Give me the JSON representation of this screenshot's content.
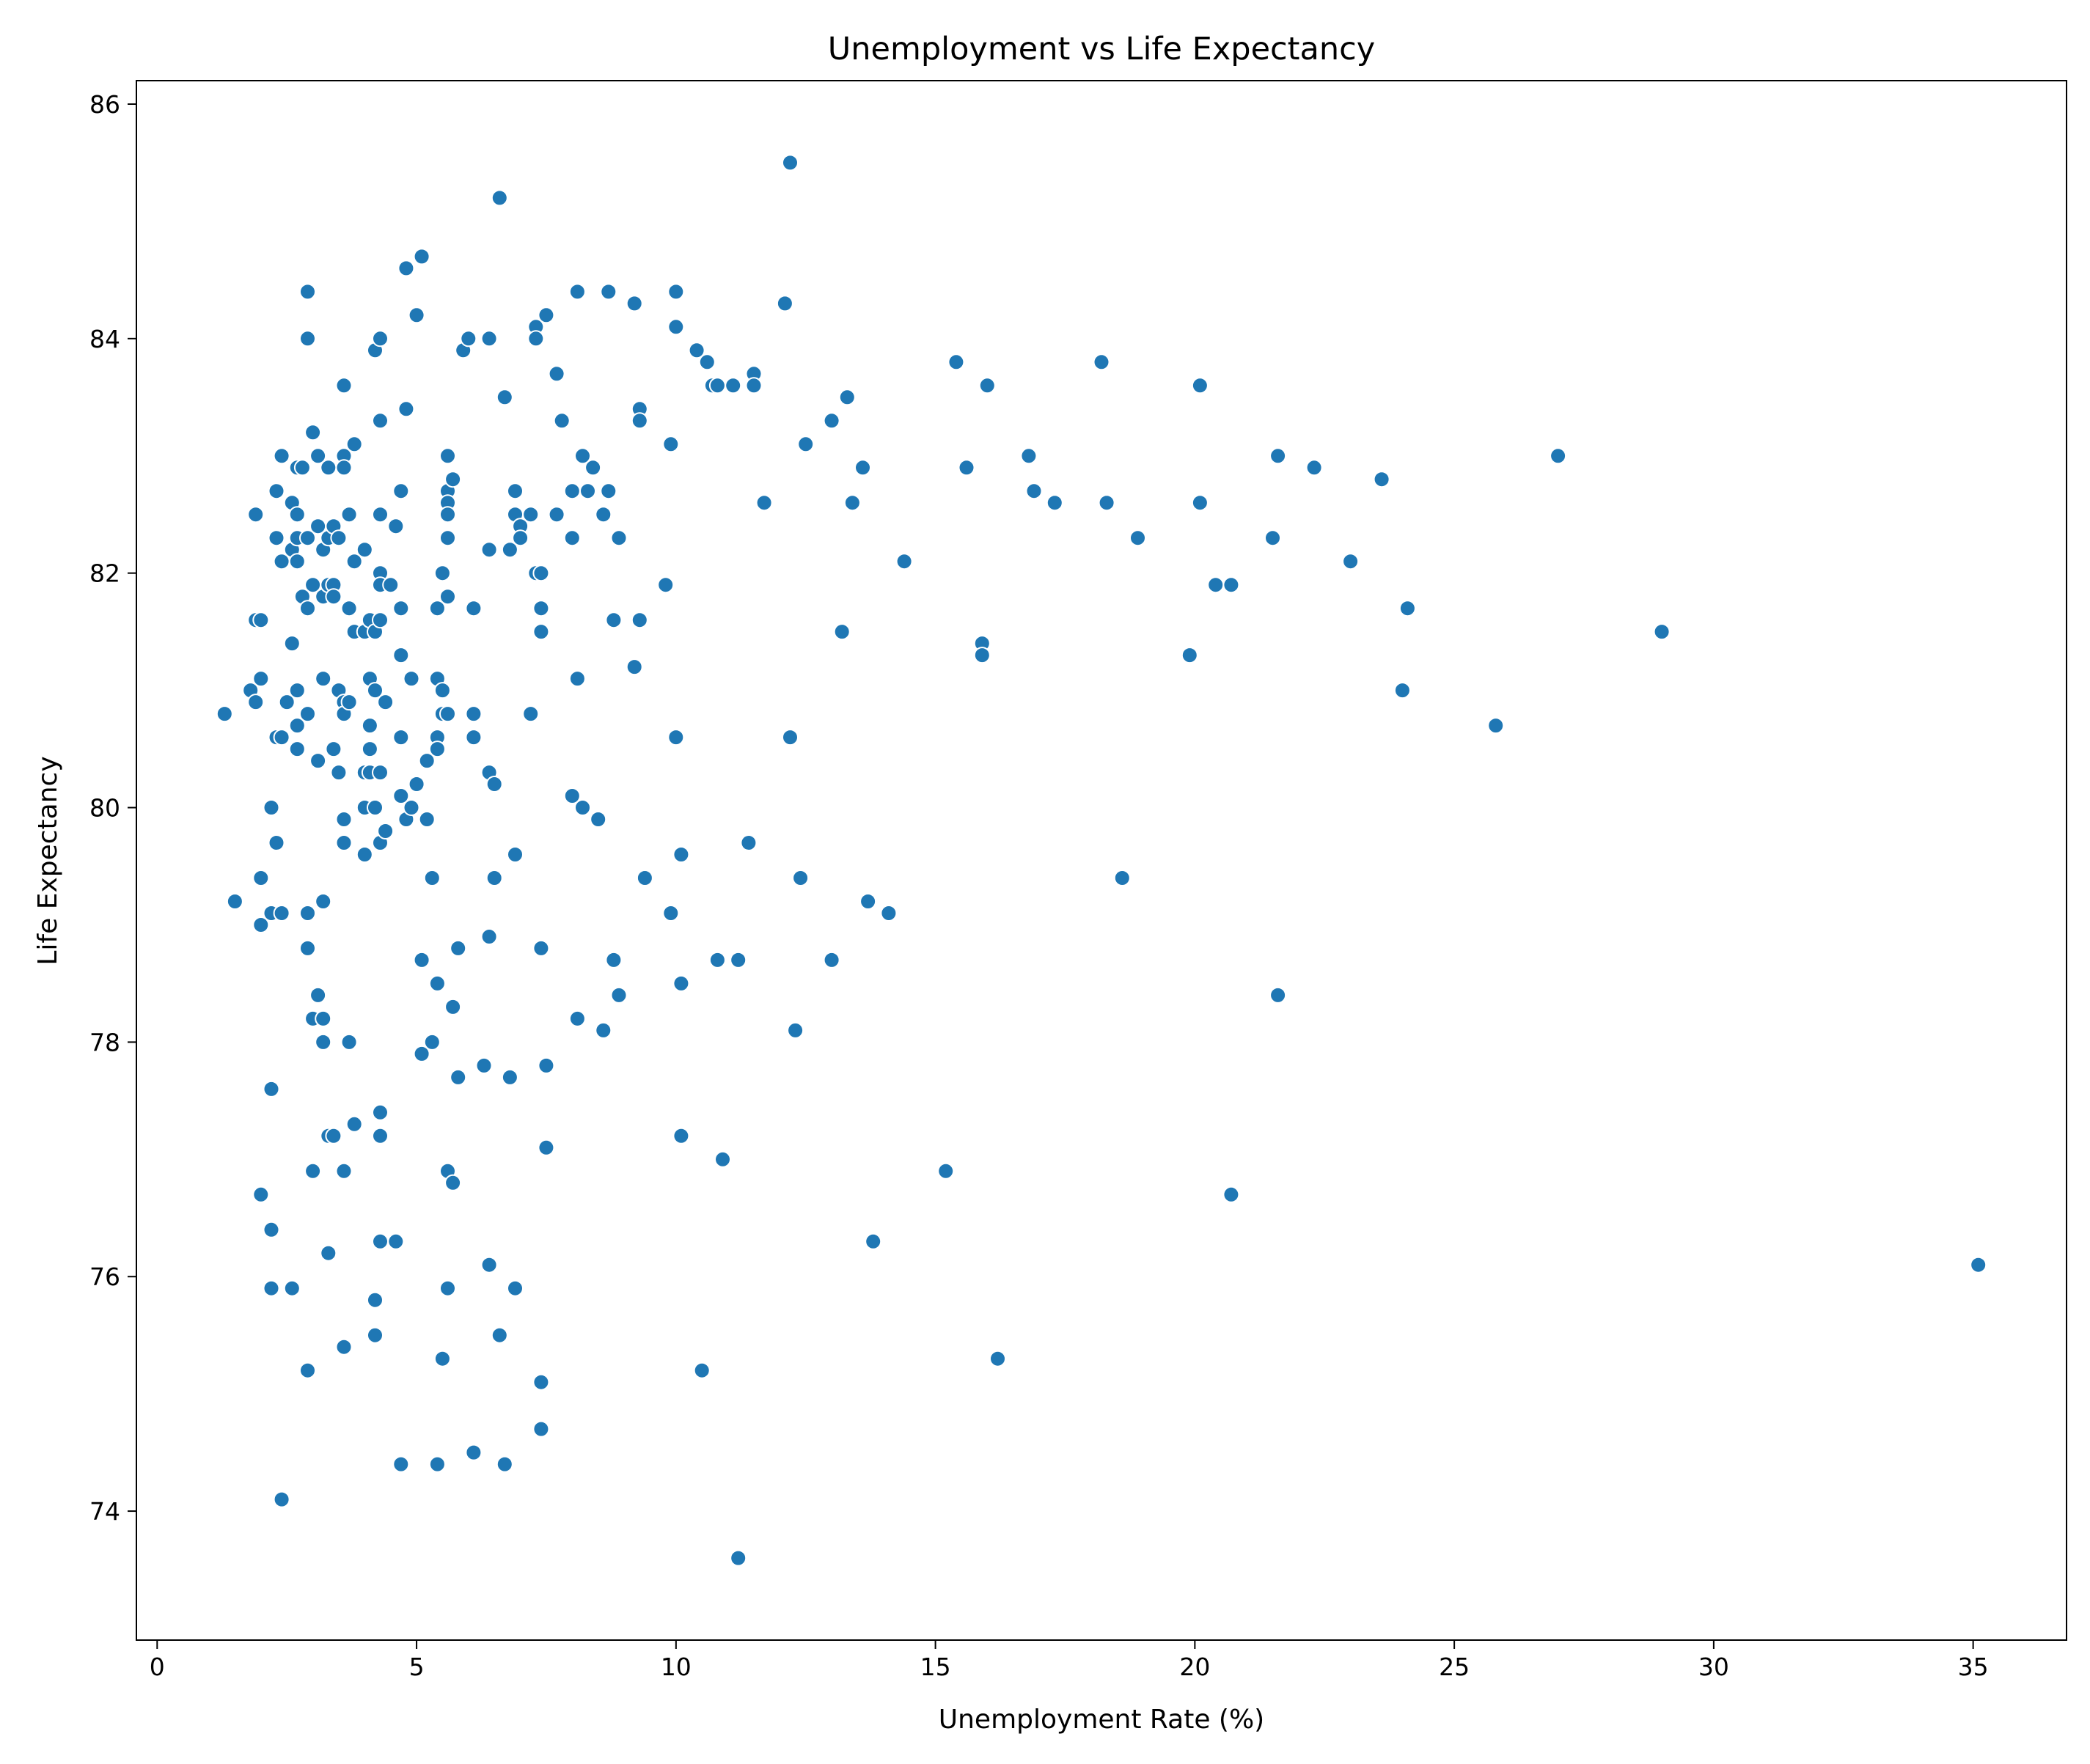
{
  "chart_data": {
    "type": "scatter",
    "title": "Unemployment vs Life Expectancy",
    "xlabel": "Unemployment Rate (%)",
    "ylabel": "Life Expectancy",
    "xlim": [
      -0.4,
      36.8
    ],
    "ylim": [
      72.9,
      86.2
    ],
    "xticks": [
      0,
      5,
      10,
      15,
      20,
      25,
      30,
      35
    ],
    "yticks": [
      74,
      76,
      78,
      80,
      82,
      84,
      86
    ],
    "grid": false,
    "marker_color": "#1f77b4",
    "points": [
      [
        1.3,
        80.8
      ],
      [
        1.5,
        79.2
      ],
      [
        1.8,
        81.0
      ],
      [
        1.9,
        80.9
      ],
      [
        1.9,
        81.6
      ],
      [
        2.0,
        81.6
      ],
      [
        1.9,
        82.5
      ],
      [
        2.0,
        81.1
      ],
      [
        2.0,
        79.4
      ],
      [
        2.0,
        79.0
      ],
      [
        2.0,
        76.7
      ],
      [
        2.2,
        80.0
      ],
      [
        2.2,
        79.1
      ],
      [
        2.2,
        77.6
      ],
      [
        2.2,
        76.4
      ],
      [
        2.2,
        75.9
      ],
      [
        2.3,
        79.7
      ],
      [
        2.3,
        80.6
      ],
      [
        2.3,
        82.3
      ],
      [
        2.3,
        82.7
      ],
      [
        2.4,
        83.0
      ],
      [
        2.4,
        82.1
      ],
      [
        2.4,
        80.6
      ],
      [
        2.4,
        79.1
      ],
      [
        2.4,
        74.1
      ],
      [
        2.5,
        80.9
      ],
      [
        2.6,
        82.6
      ],
      [
        2.6,
        82.2
      ],
      [
        2.6,
        81.4
      ],
      [
        2.6,
        75.9
      ],
      [
        2.7,
        82.9
      ],
      [
        2.7,
        82.5
      ],
      [
        2.7,
        82.3
      ],
      [
        2.7,
        82.1
      ],
      [
        2.7,
        81.0
      ],
      [
        2.7,
        80.7
      ],
      [
        2.7,
        80.5
      ],
      [
        2.8,
        81.8
      ],
      [
        2.8,
        82.9
      ],
      [
        2.9,
        84.4
      ],
      [
        2.9,
        84.0
      ],
      [
        2.9,
        82.3
      ],
      [
        2.9,
        81.7
      ],
      [
        2.9,
        80.8
      ],
      [
        2.9,
        79.1
      ],
      [
        2.9,
        78.8
      ],
      [
        2.9,
        75.2
      ],
      [
        3.0,
        83.2
      ],
      [
        3.0,
        81.9
      ],
      [
        3.0,
        78.2
      ],
      [
        3.0,
        76.9
      ],
      [
        3.1,
        83.0
      ],
      [
        3.1,
        82.4
      ],
      [
        3.1,
        80.4
      ],
      [
        3.1,
        78.4
      ],
      [
        3.2,
        82.2
      ],
      [
        3.2,
        81.8
      ],
      [
        3.2,
        81.1
      ],
      [
        3.2,
        79.2
      ],
      [
        3.2,
        78.2
      ],
      [
        3.2,
        78.0
      ],
      [
        3.3,
        82.9
      ],
      [
        3.3,
        82.3
      ],
      [
        3.3,
        81.9
      ],
      [
        3.3,
        77.2
      ],
      [
        3.3,
        76.2
      ],
      [
        3.4,
        82.4
      ],
      [
        3.4,
        81.9
      ],
      [
        3.4,
        81.8
      ],
      [
        3.4,
        80.5
      ],
      [
        3.4,
        77.2
      ],
      [
        3.5,
        82.3
      ],
      [
        3.5,
        81.0
      ],
      [
        3.5,
        80.3
      ],
      [
        3.6,
        83.6
      ],
      [
        3.6,
        83.0
      ],
      [
        3.6,
        82.9
      ],
      [
        3.6,
        80.9
      ],
      [
        3.6,
        80.8
      ],
      [
        3.6,
        79.9
      ],
      [
        3.6,
        79.7
      ],
      [
        3.6,
        76.9
      ],
      [
        3.6,
        75.4
      ],
      [
        3.7,
        82.5
      ],
      [
        3.7,
        81.7
      ],
      [
        3.7,
        80.9
      ],
      [
        3.7,
        78.0
      ],
      [
        3.8,
        83.1
      ],
      [
        3.8,
        82.1
      ],
      [
        3.8,
        81.5
      ],
      [
        3.8,
        77.3
      ],
      [
        4.0,
        82.2
      ],
      [
        4.0,
        81.5
      ],
      [
        4.0,
        80.3
      ],
      [
        4.0,
        80.0
      ],
      [
        4.0,
        79.6
      ],
      [
        4.1,
        81.6
      ],
      [
        4.1,
        81.1
      ],
      [
        4.1,
        80.7
      ],
      [
        4.1,
        80.5
      ],
      [
        4.1,
        80.3
      ],
      [
        4.2,
        83.9
      ],
      [
        4.2,
        81.5
      ],
      [
        4.2,
        81.0
      ],
      [
        4.2,
        80.0
      ],
      [
        4.2,
        75.8
      ],
      [
        4.2,
        75.5
      ],
      [
        4.3,
        84.0
      ],
      [
        4.3,
        83.3
      ],
      [
        4.3,
        82.5
      ],
      [
        4.3,
        82.0
      ],
      [
        4.3,
        81.9
      ],
      [
        4.3,
        81.6
      ],
      [
        4.3,
        80.3
      ],
      [
        4.3,
        79.7
      ],
      [
        4.3,
        77.4
      ],
      [
        4.3,
        77.2
      ],
      [
        4.3,
        76.3
      ],
      [
        4.4,
        80.9
      ],
      [
        4.4,
        79.8
      ],
      [
        4.5,
        81.9
      ],
      [
        4.6,
        82.4
      ],
      [
        4.6,
        76.3
      ],
      [
        4.7,
        82.7
      ],
      [
        4.7,
        81.7
      ],
      [
        4.7,
        81.3
      ],
      [
        4.7,
        80.6
      ],
      [
        4.7,
        80.1
      ],
      [
        4.7,
        74.4
      ],
      [
        4.8,
        84.6
      ],
      [
        4.8,
        83.4
      ],
      [
        4.8,
        79.9
      ],
      [
        4.9,
        81.1
      ],
      [
        4.9,
        80.0
      ],
      [
        5.0,
        84.2
      ],
      [
        5.0,
        80.2
      ],
      [
        5.1,
        84.7
      ],
      [
        5.1,
        78.7
      ],
      [
        5.1,
        77.9
      ],
      [
        5.2,
        80.4
      ],
      [
        5.2,
        79.9
      ],
      [
        5.3,
        79.4
      ],
      [
        5.3,
        78.0
      ],
      [
        5.4,
        81.7
      ],
      [
        5.4,
        81.1
      ],
      [
        5.4,
        80.6
      ],
      [
        5.4,
        80.5
      ],
      [
        5.4,
        78.5
      ],
      [
        5.4,
        74.4
      ],
      [
        5.5,
        82.0
      ],
      [
        5.5,
        81.0
      ],
      [
        5.5,
        80.8
      ],
      [
        5.5,
        75.3
      ],
      [
        5.6,
        83.0
      ],
      [
        5.6,
        82.7
      ],
      [
        5.6,
        82.6
      ],
      [
        5.6,
        82.5
      ],
      [
        5.6,
        82.3
      ],
      [
        5.6,
        81.8
      ],
      [
        5.6,
        80.8
      ],
      [
        5.6,
        76.9
      ],
      [
        5.6,
        75.9
      ],
      [
        5.7,
        82.8
      ],
      [
        5.7,
        78.3
      ],
      [
        5.7,
        76.8
      ],
      [
        5.8,
        78.8
      ],
      [
        5.8,
        77.7
      ],
      [
        5.9,
        83.9
      ],
      [
        6.0,
        84.0
      ],
      [
        6.1,
        81.7
      ],
      [
        6.1,
        80.8
      ],
      [
        6.1,
        80.6
      ],
      [
        6.1,
        74.5
      ],
      [
        6.3,
        77.8
      ],
      [
        6.4,
        84.0
      ],
      [
        6.4,
        82.2
      ],
      [
        6.4,
        80.3
      ],
      [
        6.4,
        78.9
      ],
      [
        6.4,
        76.1
      ],
      [
        6.5,
        80.2
      ],
      [
        6.5,
        79.4
      ],
      [
        6.6,
        85.2
      ],
      [
        6.6,
        75.5
      ],
      [
        6.7,
        83.5
      ],
      [
        6.7,
        74.4
      ],
      [
        6.8,
        82.2
      ],
      [
        6.8,
        77.7
      ],
      [
        6.9,
        82.7
      ],
      [
        6.9,
        82.5
      ],
      [
        6.9,
        79.6
      ],
      [
        6.9,
        75.9
      ],
      [
        7.0,
        82.4
      ],
      [
        7.0,
        82.3
      ],
      [
        7.2,
        82.5
      ],
      [
        7.2,
        80.8
      ],
      [
        7.3,
        84.1
      ],
      [
        7.3,
        84.0
      ],
      [
        7.3,
        82.0
      ],
      [
        7.4,
        82.0
      ],
      [
        7.4,
        81.7
      ],
      [
        7.4,
        81.5
      ],
      [
        7.4,
        78.8
      ],
      [
        7.4,
        75.1
      ],
      [
        7.4,
        74.7
      ],
      [
        7.5,
        84.2
      ],
      [
        7.5,
        77.8
      ],
      [
        7.5,
        77.1
      ],
      [
        7.7,
        83.7
      ],
      [
        7.7,
        82.5
      ],
      [
        7.8,
        83.3
      ],
      [
        8.0,
        82.7
      ],
      [
        8.0,
        82.3
      ],
      [
        8.0,
        80.1
      ],
      [
        8.1,
        84.4
      ],
      [
        8.1,
        81.1
      ],
      [
        8.1,
        78.2
      ],
      [
        8.2,
        83.0
      ],
      [
        8.2,
        80.0
      ],
      [
        8.3,
        82.7
      ],
      [
        8.4,
        82.9
      ],
      [
        8.5,
        79.9
      ],
      [
        8.6,
        82.5
      ],
      [
        8.6,
        78.1
      ],
      [
        8.7,
        84.4
      ],
      [
        8.7,
        82.7
      ],
      [
        8.8,
        81.6
      ],
      [
        8.8,
        78.7
      ],
      [
        8.9,
        82.3
      ],
      [
        8.9,
        78.4
      ],
      [
        9.2,
        84.3
      ],
      [
        9.2,
        81.2
      ],
      [
        9.3,
        83.4
      ],
      [
        9.3,
        83.3
      ],
      [
        9.3,
        81.6
      ],
      [
        9.4,
        79.4
      ],
      [
        9.8,
        81.9
      ],
      [
        9.9,
        83.1
      ],
      [
        9.9,
        79.1
      ],
      [
        10.0,
        84.4
      ],
      [
        10.0,
        84.1
      ],
      [
        10.0,
        80.6
      ],
      [
        10.1,
        79.6
      ],
      [
        10.1,
        78.5
      ],
      [
        10.1,
        77.2
      ],
      [
        10.4,
        83.9
      ],
      [
        10.5,
        75.2
      ],
      [
        10.6,
        83.8
      ],
      [
        10.7,
        83.6
      ],
      [
        10.8,
        83.6
      ],
      [
        10.8,
        78.7
      ],
      [
        10.9,
        77.0
      ],
      [
        11.1,
        83.6
      ],
      [
        11.2,
        78.7
      ],
      [
        11.2,
        73.6
      ],
      [
        11.4,
        79.7
      ],
      [
        11.5,
        83.7
      ],
      [
        11.5,
        83.6
      ],
      [
        11.7,
        82.6
      ],
      [
        12.1,
        84.3
      ],
      [
        12.2,
        85.5
      ],
      [
        12.2,
        80.6
      ],
      [
        12.3,
        78.1
      ],
      [
        12.4,
        79.4
      ],
      [
        12.5,
        83.1
      ],
      [
        13.0,
        83.3
      ],
      [
        13.0,
        78.7
      ],
      [
        13.2,
        81.5
      ],
      [
        13.3,
        83.5
      ],
      [
        13.4,
        82.6
      ],
      [
        13.6,
        82.9
      ],
      [
        13.7,
        79.2
      ],
      [
        13.8,
        76.3
      ],
      [
        14.1,
        79.1
      ],
      [
        14.4,
        82.1
      ],
      [
        15.2,
        76.9
      ],
      [
        15.4,
        83.8
      ],
      [
        15.6,
        82.9
      ],
      [
        15.9,
        81.4
      ],
      [
        15.9,
        81.3
      ],
      [
        16.0,
        83.6
      ],
      [
        16.2,
        75.3
      ],
      [
        16.8,
        83.0
      ],
      [
        16.9,
        82.7
      ],
      [
        17.3,
        82.6
      ],
      [
        18.2,
        83.8
      ],
      [
        18.3,
        82.6
      ],
      [
        18.6,
        79.4
      ],
      [
        18.9,
        82.3
      ],
      [
        19.9,
        81.3
      ],
      [
        20.1,
        83.6
      ],
      [
        20.1,
        82.6
      ],
      [
        20.4,
        81.9
      ],
      [
        20.7,
        81.9
      ],
      [
        20.7,
        76.7
      ],
      [
        21.5,
        82.3
      ],
      [
        21.6,
        83.0
      ],
      [
        21.6,
        78.4
      ],
      [
        22.3,
        82.9
      ],
      [
        23.0,
        82.1
      ],
      [
        23.6,
        82.8
      ],
      [
        24.0,
        81.0
      ],
      [
        24.1,
        81.7
      ],
      [
        25.8,
        80.7
      ],
      [
        27.0,
        83.0
      ],
      [
        29.0,
        81.5
      ],
      [
        35.1,
        76.1
      ]
    ]
  }
}
